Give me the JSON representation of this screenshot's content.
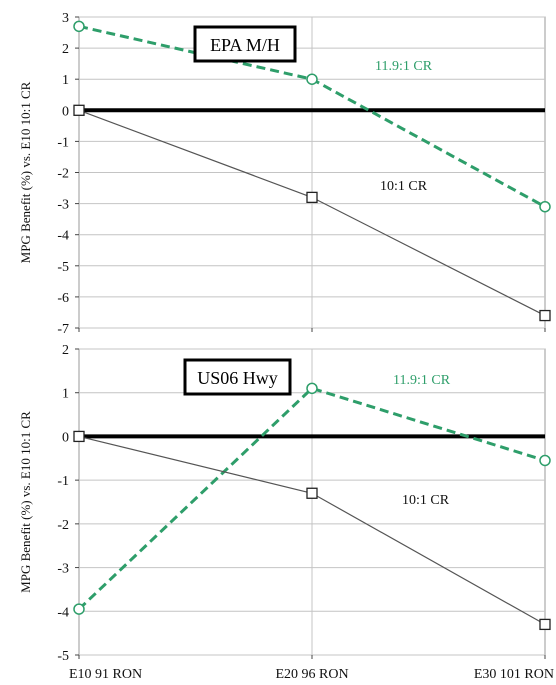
{
  "chart_data": [
    {
      "type": "line",
      "title": "EPA M/H",
      "ylabel": "MPG Benefit (%) vs. E10 10:1 CR",
      "xlabel": "",
      "categories": [
        "E10 91 RON",
        "E20 96 RON",
        "E30 101 RON"
      ],
      "ylim": [
        -7,
        3
      ],
      "yticks": [
        "3",
        "2",
        "1",
        "0",
        "-1",
        "-2",
        "-3",
        "-4",
        "-5",
        "-6",
        "-7"
      ],
      "grid": true,
      "series": [
        {
          "name": "11.9:1 CR",
          "values": [
            2.7,
            1.0,
            -3.1
          ],
          "color": "#2e9e6a",
          "style": "dashed",
          "marker": "circle"
        },
        {
          "name": "10:1 CR",
          "values": [
            0.0,
            -2.8,
            -6.6
          ],
          "color": "#555555",
          "style": "solid",
          "marker": "square"
        }
      ]
    },
    {
      "type": "line",
      "title": "US06 Hwy",
      "ylabel": "MPG Benefit (%) vs. E10 10:1 CR",
      "xlabel": "",
      "categories": [
        "E10 91 RON",
        "E20 96 RON",
        "E30 101 RON"
      ],
      "ylim": [
        -5,
        2
      ],
      "yticks": [
        "2",
        "1",
        "0",
        "-1",
        "-2",
        "-3",
        "-4",
        "-5"
      ],
      "grid": true,
      "series": [
        {
          "name": "11.9:1 CR",
          "values": [
            -3.95,
            1.1,
            -0.55
          ],
          "color": "#2e9e6a",
          "style": "dashed",
          "marker": "circle"
        },
        {
          "name": "10:1 CR",
          "values": [
            0.0,
            -1.3,
            -4.3
          ],
          "color": "#555555",
          "style": "solid",
          "marker": "square"
        }
      ]
    }
  ]
}
